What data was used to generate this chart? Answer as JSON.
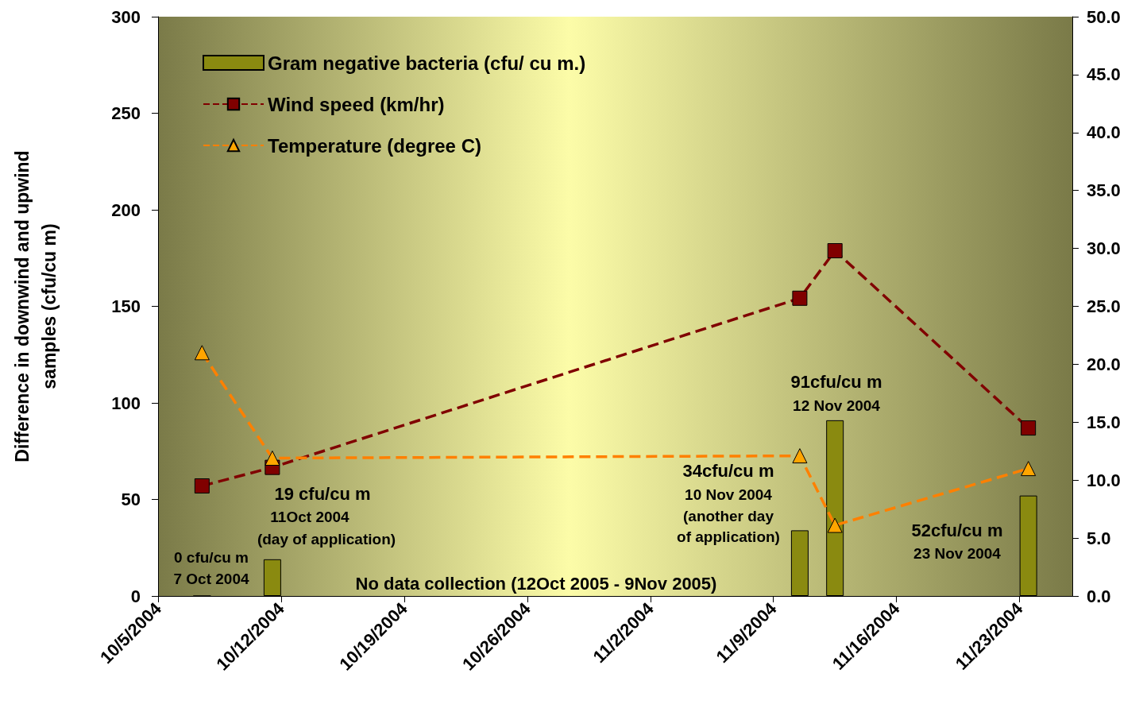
{
  "chart_data": {
    "type": "bar",
    "ylabel": "Difference in downwind and upwind samples (cfu/cu m)",
    "x": [
      "2004-10-07T12:00",
      "2004-10-11T12:00",
      "2004-11-10T12:00",
      "2004-11-12T12:00",
      "2004-11-23T12:00"
    ],
    "series": [
      {
        "name": "Gram negative bacteria (cfu/ cu m.)",
        "color": "#8a8a10",
        "values": [
          0,
          19,
          34,
          91,
          52
        ]
      },
      {
        "name": "Wind speed (km/hr)",
        "type": "line",
        "axis": "y2",
        "color": "#800000",
        "marker": "square",
        "line_style": "dashed",
        "values": [
          9.5,
          11.1,
          25.7,
          29.8,
          14.5
        ]
      },
      {
        "name": "Temperature (degree C)",
        "type": "line",
        "axis": "y2",
        "color": "#ff8000",
        "marker": "triangle",
        "line_style": "dashed",
        "values": [
          21.0,
          11.9,
          12.1,
          6.1,
          11.0
        ]
      }
    ],
    "xlim": [
      "2004-10-05",
      "2004-11-26"
    ],
    "xticks": [
      {
        "value": "2004-10-05",
        "label": "10/5/2004"
      },
      {
        "value": "2004-10-12",
        "label": "10/12/2004"
      },
      {
        "value": "2004-10-19",
        "label": "10/19/2004"
      },
      {
        "value": "2004-10-26",
        "label": "10/26/2004"
      },
      {
        "value": "2004-11-02",
        "label": "11/2/2004"
      },
      {
        "value": "2004-11-09",
        "label": "11/9/2004"
      },
      {
        "value": "2004-11-16",
        "label": "11/16/2004"
      },
      {
        "value": "2004-11-23",
        "label": "11/23/2004"
      }
    ],
    "ylim": [
      0,
      300
    ],
    "yticks": [
      0,
      50,
      100,
      150,
      200,
      250,
      300
    ],
    "y2lim": [
      0,
      50
    ],
    "y2ticks": [
      {
        "value": 0,
        "label": "0.0"
      },
      {
        "value": 5,
        "label": "5.0"
      },
      {
        "value": 10,
        "label": "10.0"
      },
      {
        "value": 15,
        "label": "15.0"
      },
      {
        "value": 20,
        "label": "20.0"
      },
      {
        "value": 25,
        "label": "25.0"
      },
      {
        "value": 30,
        "label": "30.0"
      },
      {
        "value": 35,
        "label": "35.0"
      },
      {
        "value": 40,
        "label": "40.0"
      },
      {
        "value": 45,
        "label": "45.0"
      },
      {
        "value": 50,
        "label": "50.0"
      }
    ],
    "grid": false,
    "legend": "top left",
    "annotations": [
      "0 cfu/cu m",
      "7 Oct 2004",
      "19 cfu/cu m",
      "11Oct 2004",
      "(day of application)",
      "34cfu/cu m",
      "10 Nov 2004",
      "(another day",
      "of application)",
      "91cfu/cu m",
      "12 Nov 2004",
      "52cfu/cu m",
      "23 Nov 2004",
      "No data collection (12Oct 2005 - 9Nov 2005)"
    ]
  }
}
